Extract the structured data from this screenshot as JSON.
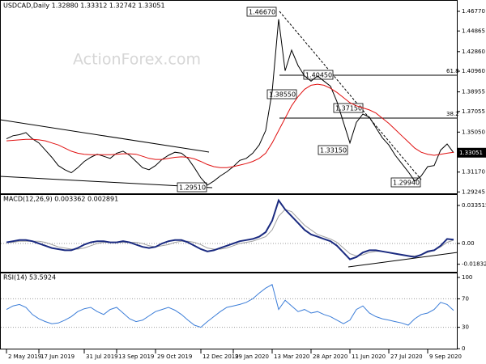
{
  "chart_data": [
    {
      "type": "line",
      "title": "USDCAD,Daily  1.32880 1.33312 1.32742 1.33051",
      "watermark": "ActionForex.com",
      "ylim": [
        1.2903,
        1.4787
      ],
      "yticks": [
        {
          "value": 1.4677,
          "label": "1.46770"
        },
        1.44865,
        {
          "value": 1.4286,
          "label": "1.42860"
        },
        {
          "value": 1.4096,
          "label": "1.40960"
        },
        1.38955,
        1.37055,
        {
          "value": 1.3505,
          "label": "1.35050"
        },
        {
          "value": 1.3117,
          "label": "1.31170"
        },
        1.29245
      ],
      "last_price": "1.33051",
      "annotations": [
        "1.46670",
        "1.40450",
        "1.38550",
        "1.37150",
        "1.33150",
        "1.29940",
        "1.29510"
      ],
      "fib_labels": [
        "61.8",
        "38.2"
      ],
      "series": [
        {
          "color": "#000000",
          "values": [
            1.344,
            1.347,
            1.348,
            1.35,
            1.344,
            1.34,
            1.333,
            1.326,
            1.318,
            1.314,
            1.311,
            1.316,
            1.322,
            1.326,
            1.329,
            1.327,
            1.325,
            1.33,
            1.332,
            1.328,
            1.322,
            1.316,
            1.314,
            1.318,
            1.324,
            1.328,
            1.331,
            1.33,
            1.325,
            1.316,
            1.306,
            1.299,
            1.303,
            1.308,
            1.312,
            1.317,
            1.323,
            1.325,
            1.33,
            1.338,
            1.352,
            1.39,
            1.46,
            1.41,
            1.43,
            1.415,
            1.405,
            1.4,
            1.405,
            1.4,
            1.395,
            1.38,
            1.36,
            1.34,
            1.36,
            1.368,
            1.365,
            1.355,
            1.345,
            1.338,
            1.328,
            1.32,
            1.312,
            1.303,
            1.308,
            1.317,
            1.318,
            1.333,
            1.339,
            1.3305
          ]
        },
        {
          "color": "#e01010",
          "values": [
            1.342,
            1.3425,
            1.343,
            1.3435,
            1.3435,
            1.343,
            1.342,
            1.34,
            1.338,
            1.335,
            1.332,
            1.33,
            1.329,
            1.3285,
            1.3285,
            1.3285,
            1.3285,
            1.329,
            1.3295,
            1.3295,
            1.329,
            1.327,
            1.325,
            1.324,
            1.324,
            1.325,
            1.326,
            1.3265,
            1.326,
            1.3245,
            1.322,
            1.319,
            1.317,
            1.316,
            1.316,
            1.317,
            1.3185,
            1.32,
            1.322,
            1.325,
            1.33,
            1.34,
            1.352,
            1.364,
            1.376,
            1.385,
            1.392,
            1.396,
            1.397,
            1.396,
            1.393,
            1.389,
            1.384,
            1.379,
            1.376,
            1.374,
            1.372,
            1.369,
            1.364,
            1.359,
            1.353,
            1.347,
            1.341,
            1.335,
            1.331,
            1.329,
            1.328,
            1.329,
            1.33,
            1.331
          ]
        }
      ]
    },
    {
      "type": "line",
      "title": "MACD(12,26,9) 0.003362 0.002891",
      "ylim": [
        -0.0257,
        0.0435
      ],
      "yticks": [
        0.033515,
        {
          "value": 0,
          "label": "0.00"
        },
        -0.018324
      ],
      "levels": [
        0
      ],
      "series": [
        {
          "color": "#a0a0a0",
          "values": [
            0.001,
            0.001,
            0.002,
            0.002,
            0.002,
            0.002,
            0.001,
            -0.001,
            -0.003,
            -0.004,
            -0.005,
            -0.005,
            -0.004,
            -0.002,
            0,
            0.001,
            0.001,
            0.001,
            0.001,
            0.001,
            0.001,
            0,
            -0.002,
            -0.003,
            -0.002,
            -0.001,
            0.001,
            0.002,
            0.002,
            0.001,
            -0.001,
            -0.004,
            -0.005,
            -0.005,
            -0.004,
            -0.002,
            0,
            0.001,
            0.002,
            0.004,
            0.006,
            0.012,
            0.024,
            0.03,
            0.028,
            0.022,
            0.016,
            0.012,
            0.008,
            0.006,
            0.004,
            0.001,
            -0.004,
            -0.009,
            -0.011,
            -0.01,
            -0.008,
            -0.007,
            -0.007,
            -0.008,
            -0.009,
            -0.01,
            -0.011,
            -0.011,
            -0.01,
            -0.008,
            -0.006,
            -0.003,
            0.001,
            0.002891
          ]
        },
        {
          "color": "#1a2a80",
          "values": [
            0.001,
            0.002,
            0.003,
            0.003,
            0.002,
            0,
            -0.002,
            -0.004,
            -0.005,
            -0.006,
            -0.006,
            -0.004,
            -0.001,
            0.001,
            0.002,
            0.002,
            0.001,
            0.001,
            0.002,
            0.001,
            -0.001,
            -0.003,
            -0.004,
            -0.003,
            0,
            0.002,
            0.003,
            0.003,
            0.001,
            -0.002,
            -0.005,
            -0.007,
            -0.006,
            -0.004,
            -0.002,
            0,
            0.002,
            0.003,
            0.004,
            0.006,
            0.01,
            0.02,
            0.038,
            0.03,
            0.024,
            0.018,
            0.012,
            0.008,
            0.006,
            0.004,
            0.002,
            -0.002,
            -0.008,
            -0.014,
            -0.012,
            -0.008,
            -0.006,
            -0.006,
            -0.007,
            -0.008,
            -0.009,
            -0.01,
            -0.011,
            -0.012,
            -0.01,
            -0.007,
            -0.006,
            -0.002,
            0.004,
            0.003362
          ]
        }
      ]
    },
    {
      "type": "line",
      "title": "RSI(14) 53.5924",
      "ylim": [
        -1.1,
        106.8
      ],
      "yticks": [
        100,
        70,
        30,
        0
      ],
      "levels": [
        70,
        30
      ],
      "series": [
        {
          "color": "#3b7dd8",
          "values": [
            55,
            60,
            62,
            58,
            48,
            42,
            38,
            35,
            36,
            40,
            45,
            52,
            56,
            58,
            52,
            48,
            55,
            58,
            50,
            42,
            38,
            40,
            46,
            52,
            55,
            58,
            54,
            48,
            40,
            33,
            30,
            38,
            45,
            52,
            58,
            60,
            62,
            65,
            70,
            78,
            85,
            90,
            55,
            68,
            60,
            52,
            55,
            50,
            52,
            48,
            45,
            40,
            35,
            40,
            55,
            60,
            50,
            45,
            42,
            40,
            38,
            36,
            33,
            42,
            48,
            50,
            55,
            65,
            62,
            53.5924
          ]
        }
      ],
      "xlim": [
        -1,
        70
      ],
      "xticks": [
        {
          "value": 0,
          "label": "2 May 2019"
        },
        {
          "value": 5,
          "label": "17 Jun 2019"
        },
        {
          "value": 12,
          "label": "31 Jul 2019"
        },
        {
          "value": 17,
          "label": "13 Sep 2019"
        },
        {
          "value": 23,
          "label": "29 Oct 2019"
        },
        {
          "value": 30,
          "label": "12 Dec 2019"
        },
        {
          "value": 35,
          "label": "29 Jan 2020"
        },
        {
          "value": 41,
          "label": "13 Mar 2020"
        },
        {
          "value": 47,
          "label": "28 Apr 2020"
        },
        {
          "value": 53,
          "label": "11 Jun 2020"
        },
        {
          "value": 59,
          "label": "27 Jul 2020"
        },
        {
          "value": 65,
          "label": "9 Sep 2020"
        }
      ]
    }
  ]
}
